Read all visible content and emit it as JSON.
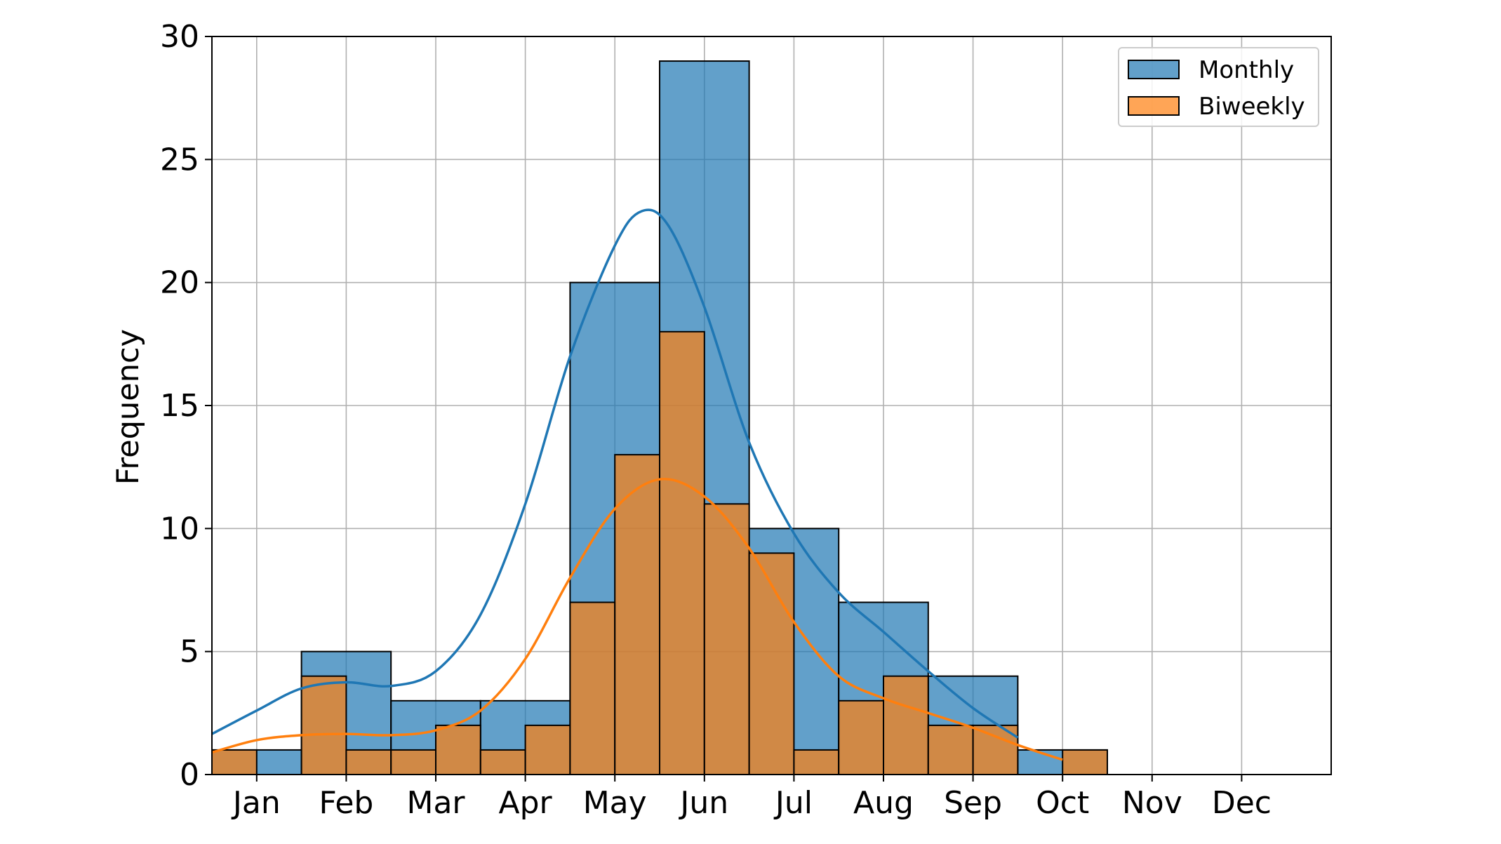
{
  "chart_data": {
    "type": "bar",
    "title": "",
    "xlabel": "",
    "ylabel": "Frequency",
    "ylim": [
      0,
      30
    ],
    "yticks": [
      0,
      5,
      10,
      15,
      20,
      25,
      30
    ],
    "x_range": [
      0.5,
      13
    ],
    "month_ticks": [
      {
        "x": 1,
        "label": "Jan"
      },
      {
        "x": 2,
        "label": "Feb"
      },
      {
        "x": 3,
        "label": "Mar"
      },
      {
        "x": 4,
        "label": "Apr"
      },
      {
        "x": 5,
        "label": "May"
      },
      {
        "x": 6,
        "label": "Jun"
      },
      {
        "x": 7,
        "label": "Jul"
      },
      {
        "x": 8,
        "label": "Aug"
      },
      {
        "x": 9,
        "label": "Sep"
      },
      {
        "x": 10,
        "label": "Oct"
      },
      {
        "x": 11,
        "label": "Nov"
      },
      {
        "x": 12,
        "label": "Dec"
      }
    ],
    "grid": true,
    "legend_position": "top-right",
    "series": [
      {
        "name": "Monthly",
        "color": "#1f77b4",
        "bars": [
          {
            "x0": 0.5,
            "x1": 1.5,
            "value": 1
          },
          {
            "x0": 1.5,
            "x1": 2.5,
            "value": 5
          },
          {
            "x0": 2.5,
            "x1": 3.5,
            "value": 3
          },
          {
            "x0": 3.5,
            "x1": 4.5,
            "value": 3
          },
          {
            "x0": 4.5,
            "x1": 5.5,
            "value": 20
          },
          {
            "x0": 5.5,
            "x1": 6.5,
            "value": 29
          },
          {
            "x0": 6.5,
            "x1": 7.5,
            "value": 10
          },
          {
            "x0": 7.5,
            "x1": 8.5,
            "value": 7
          },
          {
            "x0": 8.5,
            "x1": 9.5,
            "value": 4
          },
          {
            "x0": 9.5,
            "x1": 10.5,
            "value": 1
          }
        ],
        "kde": [
          [
            0.5,
            1.65
          ],
          [
            1,
            2.6
          ],
          [
            1.5,
            3.5
          ],
          [
            2,
            3.75
          ],
          [
            2.5,
            3.6
          ],
          [
            3,
            4.2
          ],
          [
            3.5,
            6.5
          ],
          [
            4,
            11
          ],
          [
            4.5,
            17
          ],
          [
            5,
            21.5
          ],
          [
            5.3,
            22.9
          ],
          [
            5.6,
            22.3
          ],
          [
            6,
            19
          ],
          [
            6.5,
            13.5
          ],
          [
            7,
            9.8
          ],
          [
            7.5,
            7.4
          ],
          [
            8,
            5.8
          ],
          [
            8.5,
            4.2
          ],
          [
            9,
            2.7
          ],
          [
            9.5,
            1.5
          ]
        ]
      },
      {
        "name": "Biweekly",
        "color": "#ff7f0e",
        "bars": [
          {
            "x0": 0.5,
            "x1": 1.0,
            "value": 1
          },
          {
            "x0": 1.5,
            "x1": 2.0,
            "value": 4
          },
          {
            "x0": 2.0,
            "x1": 2.5,
            "value": 1
          },
          {
            "x0": 2.5,
            "x1": 3.0,
            "value": 1
          },
          {
            "x0": 3.0,
            "x1": 3.5,
            "value": 2
          },
          {
            "x0": 3.5,
            "x1": 4.0,
            "value": 1
          },
          {
            "x0": 4.0,
            "x1": 4.5,
            "value": 2
          },
          {
            "x0": 4.5,
            "x1": 5.0,
            "value": 7
          },
          {
            "x0": 5.0,
            "x1": 5.5,
            "value": 13
          },
          {
            "x0": 5.5,
            "x1": 6.0,
            "value": 18
          },
          {
            "x0": 6.0,
            "x1": 6.5,
            "value": 11
          },
          {
            "x0": 6.5,
            "x1": 7.0,
            "value": 9
          },
          {
            "x0": 7.0,
            "x1": 7.5,
            "value": 1
          },
          {
            "x0": 7.5,
            "x1": 8.0,
            "value": 3
          },
          {
            "x0": 8.0,
            "x1": 8.5,
            "value": 4
          },
          {
            "x0": 8.5,
            "x1": 9.0,
            "value": 2
          },
          {
            "x0": 9.0,
            "x1": 9.5,
            "value": 2
          },
          {
            "x0": 10.0,
            "x1": 10.5,
            "value": 1
          }
        ],
        "kde": [
          [
            0.5,
            0.9
          ],
          [
            1,
            1.4
          ],
          [
            1.5,
            1.6
          ],
          [
            2,
            1.65
          ],
          [
            2.5,
            1.6
          ],
          [
            3,
            1.8
          ],
          [
            3.5,
            2.6
          ],
          [
            4,
            4.7
          ],
          [
            4.5,
            8
          ],
          [
            5,
            10.8
          ],
          [
            5.5,
            12
          ],
          [
            6,
            11.3
          ],
          [
            6.5,
            9.2
          ],
          [
            7,
            6.2
          ],
          [
            7.5,
            4
          ],
          [
            8,
            3.1
          ],
          [
            8.5,
            2.5
          ],
          [
            9,
            1.9
          ],
          [
            9.5,
            1.2
          ],
          [
            10,
            0.6
          ]
        ]
      }
    ]
  }
}
